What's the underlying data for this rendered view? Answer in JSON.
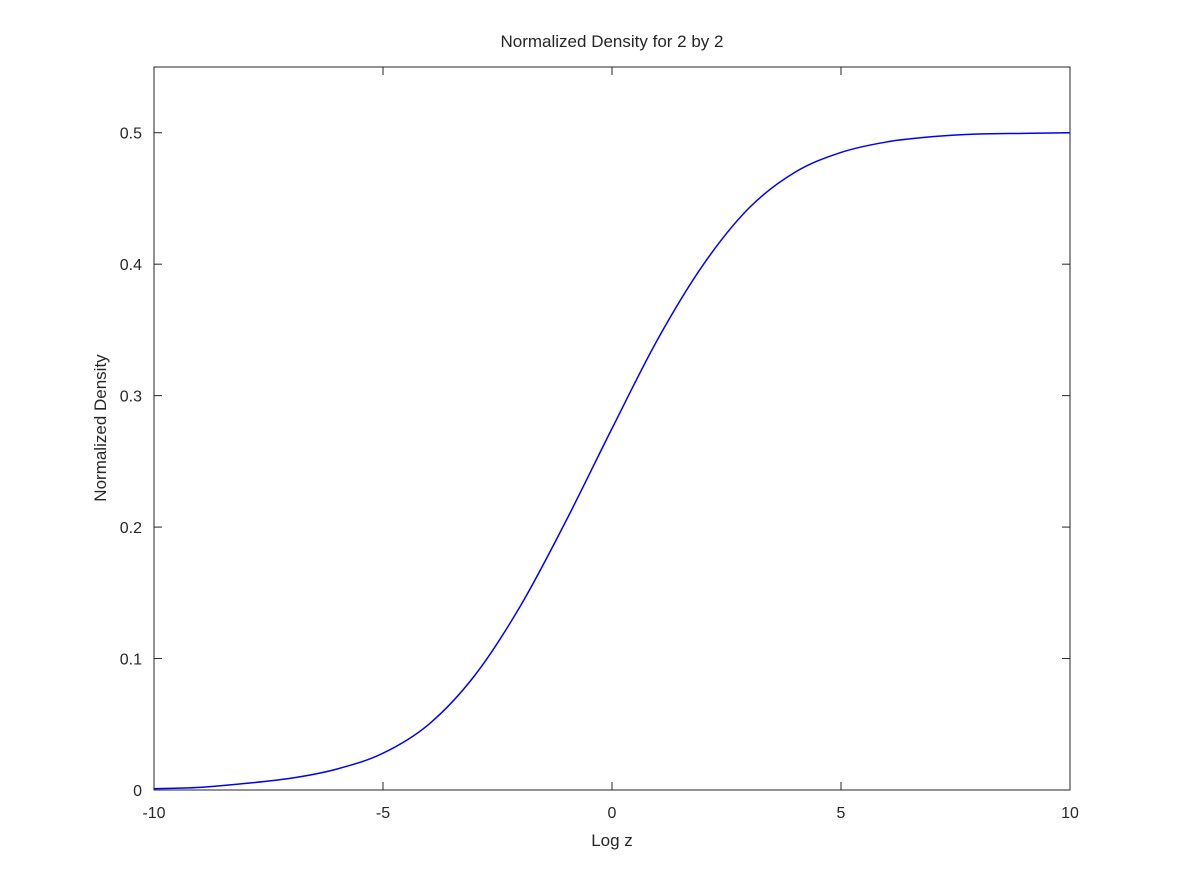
{
  "chart_data": {
    "type": "line",
    "title": "Normalized Density for 2 by 2",
    "xlabel": "Log z",
    "ylabel": "Normalized Density",
    "xlim": [
      -10,
      10
    ],
    "ylim": [
      0,
      0.55
    ],
    "xticks": [
      -10,
      -5,
      0,
      5,
      10
    ],
    "yticks": [
      0,
      0.1,
      0.2,
      0.3,
      0.4,
      0.5
    ],
    "xtick_labels": [
      "-10",
      "-5",
      "0",
      "5",
      "10"
    ],
    "ytick_labels": [
      "0",
      "0.1",
      "0.2",
      "0.3",
      "0.4",
      "0.5"
    ],
    "grid": false,
    "box": true,
    "series": [
      {
        "color": "#0000ff",
        "x": [
          -10,
          -9,
          -8,
          -7,
          -6,
          -5,
          -4,
          -3,
          -2,
          -1,
          0,
          1,
          2,
          3,
          4,
          5,
          6,
          7,
          8,
          9,
          10
        ],
        "y": [
          0.001,
          0.002,
          0.005,
          0.009,
          0.016,
          0.028,
          0.05,
          0.087,
          0.14,
          0.205,
          0.275,
          0.343,
          0.4,
          0.443,
          0.47,
          0.485,
          0.493,
          0.497,
          0.499,
          0.4995,
          0.5
        ]
      }
    ]
  }
}
